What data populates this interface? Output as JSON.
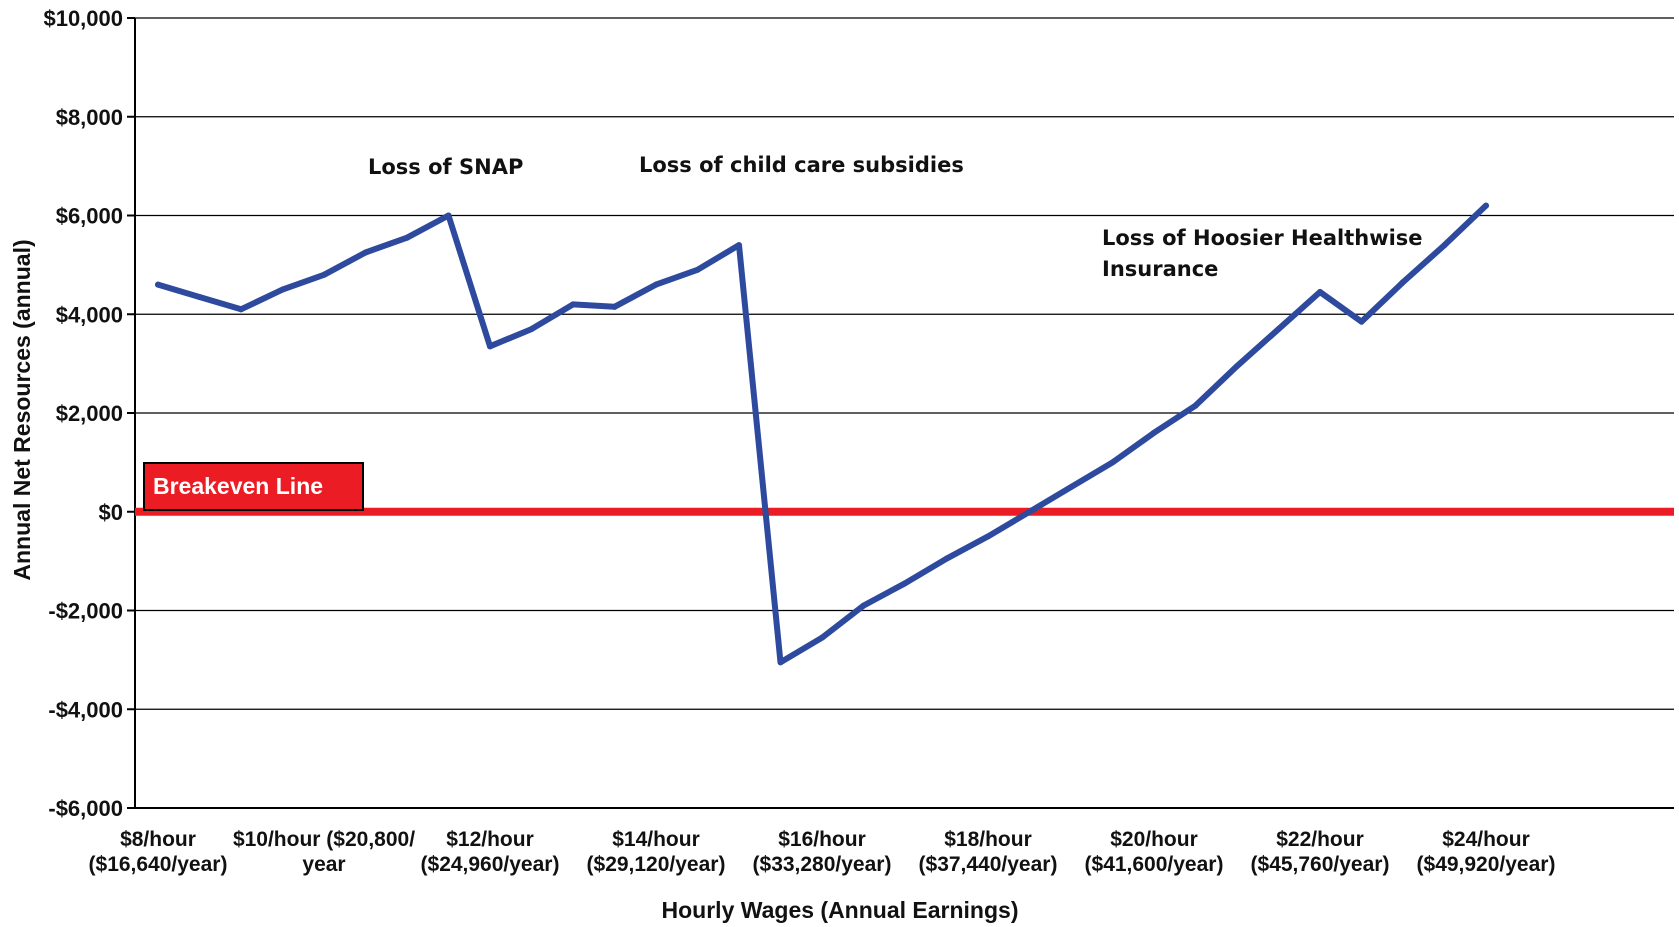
{
  "chart_data": {
    "type": "line",
    "xlabel": "Hourly Wages (Annual Earnings)",
    "ylabel": "Annual Net Resources (annual)",
    "ylim": [
      -6000,
      10000
    ],
    "yticks": [
      10000,
      8000,
      6000,
      4000,
      2000,
      0,
      -2000,
      -4000,
      -6000
    ],
    "ytick_labels": [
      "$10,000",
      "$8,000",
      "$6,000",
      "$4,000",
      "$2,000",
      "$0",
      "-$2,000",
      "-$4,000",
      "-$6,000"
    ],
    "xlim": [
      8,
      26
    ],
    "x_tick_labels": [
      {
        "x": 8,
        "line1": "$8/hour",
        "line2": "($16,640/year)"
      },
      {
        "x": 10,
        "line1": "$10/hour ($20,800/",
        "line2": "year"
      },
      {
        "x": 12,
        "line1": "$12/hour",
        "line2": "($24,960/year)"
      },
      {
        "x": 14,
        "line1": "$14/hour",
        "line2": "($29,120/year)"
      },
      {
        "x": 16,
        "line1": "$16/hour",
        "line2": "($33,280/year)"
      },
      {
        "x": 18,
        "line1": "$18/hour",
        "line2": "($37,440/year)"
      },
      {
        "x": 20,
        "line1": "$20/hour",
        "line2": "($41,600/year)"
      },
      {
        "x": 22,
        "line1": "$22/hour",
        "line2": "($45,760/year)"
      },
      {
        "x": 24,
        "line1": "$24/hour",
        "line2": "($49,920/year)"
      }
    ],
    "grid": true,
    "series": [
      {
        "color": "#2E4A9E",
        "points": [
          [
            8.0,
            4600
          ],
          [
            8.5,
            4350
          ],
          [
            9.0,
            4100
          ],
          [
            9.5,
            4500
          ],
          [
            10.0,
            4800
          ],
          [
            10.5,
            5250
          ],
          [
            11.0,
            5550
          ],
          [
            11.5,
            6000
          ],
          [
            12.0,
            3350
          ],
          [
            12.5,
            3700
          ],
          [
            13.0,
            4200
          ],
          [
            13.5,
            4150
          ],
          [
            14.0,
            4600
          ],
          [
            14.5,
            4900
          ],
          [
            15.0,
            5400
          ],
          [
            15.5,
            -3050
          ],
          [
            16.0,
            -2550
          ],
          [
            16.5,
            -1900
          ],
          [
            17.0,
            -1450
          ],
          [
            17.5,
            -950
          ],
          [
            18.0,
            -500
          ],
          [
            18.5,
            0
          ],
          [
            19.0,
            500
          ],
          [
            19.5,
            1000
          ],
          [
            20.0,
            1600
          ],
          [
            20.5,
            2150
          ],
          [
            21.0,
            2950
          ],
          [
            21.5,
            3700
          ],
          [
            22.0,
            4450
          ],
          [
            22.5,
            3850
          ],
          [
            23.0,
            4650
          ],
          [
            23.5,
            5400
          ],
          [
            24.0,
            6200
          ]
        ]
      }
    ],
    "breakeven": {
      "y": 0,
      "label": "Breakeven Line",
      "color": "#EC1C24"
    },
    "annotations": [
      {
        "line1": "Loss of SNAP",
        "line2": ""
      },
      {
        "line1": "Loss of child care subsidies",
        "line2": ""
      },
      {
        "line1": "Loss of Hoosier Healthwise",
        "line2": "Insurance"
      }
    ]
  }
}
